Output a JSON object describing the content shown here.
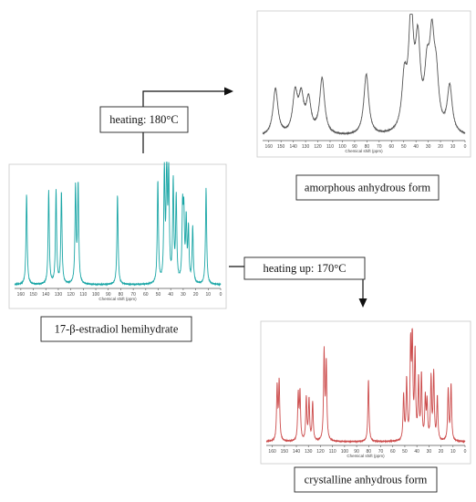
{
  "spectra": [
    {
      "id": "hemihydrate",
      "color": "#1aa6a6",
      "axis_title": "Chemical shift (ppm)",
      "ticks": [
        160,
        150,
        140,
        130,
        120,
        110,
        100,
        90,
        80,
        70,
        60,
        50,
        40,
        30,
        20,
        10,
        0
      ],
      "peaks": [
        [
          155.4,
          0.78
        ],
        [
          137.7,
          0.8
        ],
        [
          131.8,
          0.8
        ],
        [
          127.5,
          0.79
        ],
        [
          116.2,
          0.82
        ],
        [
          114.1,
          0.84
        ],
        [
          82.6,
          0.77
        ],
        [
          50.3,
          0.88
        ],
        [
          45.1,
          0.95
        ],
        [
          43.2,
          0.98
        ],
        [
          41.6,
          0.92
        ],
        [
          38.0,
          0.86
        ],
        [
          35.6,
          0.72
        ],
        [
          30.5,
          0.6
        ],
        [
          29.5,
          0.55
        ],
        [
          27.6,
          0.52
        ],
        [
          25.8,
          0.45
        ],
        [
          22.4,
          0.48
        ],
        [
          11.7,
          0.82
        ]
      ],
      "peak_width": 0.55
    },
    {
      "id": "amorphous",
      "color": "#555555",
      "axis_title": "Chemical shift (ppm)",
      "ticks": [
        160,
        150,
        140,
        130,
        120,
        110,
        100,
        90,
        80,
        70,
        60,
        50,
        40,
        30,
        20,
        10,
        0
      ],
      "peaks": [
        [
          154.5,
          0.4
        ],
        [
          138.5,
          0.34
        ],
        [
          133.5,
          0.3
        ],
        [
          127.5,
          0.28
        ],
        [
          116.5,
          0.48
        ],
        [
          80.5,
          0.52
        ],
        [
          49.5,
          0.42
        ],
        [
          44.0,
          0.95
        ],
        [
          38.5,
          0.7
        ],
        [
          31.0,
          0.44
        ],
        [
          27.0,
          0.7
        ],
        [
          23.5,
          0.4
        ],
        [
          12.5,
          0.4
        ]
      ],
      "peak_width": 2.4
    },
    {
      "id": "crystalline",
      "color": "#cc4b4b",
      "axis_title": "Chemical shift (ppm)",
      "ticks": [
        160,
        150,
        140,
        130,
        120,
        110,
        100,
        90,
        80,
        70,
        60,
        50,
        40,
        30,
        20,
        10,
        0
      ],
      "peaks": [
        [
          156.0,
          0.5
        ],
        [
          154.3,
          0.55
        ],
        [
          138.5,
          0.42
        ],
        [
          137.0,
          0.44
        ],
        [
          131.8,
          0.4
        ],
        [
          129.5,
          0.38
        ],
        [
          126.5,
          0.36
        ],
        [
          117.0,
          0.82
        ],
        [
          115.2,
          0.72
        ],
        [
          80.2,
          0.58
        ],
        [
          51.0,
          0.42
        ],
        [
          48.5,
          0.55
        ],
        [
          45.2,
          0.85
        ],
        [
          43.8,
          0.95
        ],
        [
          41.5,
          0.8
        ],
        [
          38.6,
          0.55
        ],
        [
          36.2,
          0.6
        ],
        [
          33.0,
          0.38
        ],
        [
          31.5,
          0.34
        ],
        [
          28.2,
          0.58
        ],
        [
          26.0,
          0.62
        ],
        [
          23.0,
          0.4
        ],
        [
          14.0,
          0.48
        ],
        [
          11.6,
          0.52
        ]
      ],
      "peak_width": 0.55
    }
  ],
  "labels": {
    "hemihydrate": "17-β-estradiol hemihydrate",
    "amorphous": "amorphous anhydrous form",
    "crystalline": "crystalline anhydrous form",
    "heating_amorphous": "heating: 180°C",
    "heating_crystalline": "heating up: 170°C"
  }
}
